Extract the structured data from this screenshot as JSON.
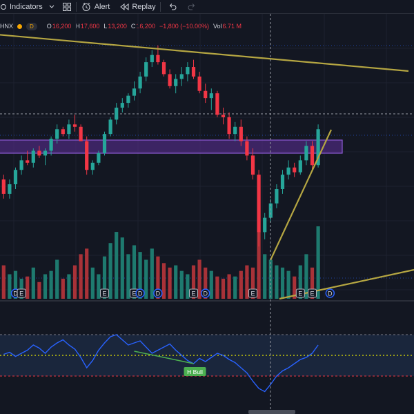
{
  "toolbar": {
    "indicators_label": "Indicators",
    "alert_label": "Alert",
    "replay_label": "Replay"
  },
  "legend": {
    "symbol": "HNX",
    "timeframe": "D",
    "open_key": "O",
    "open": "16,200",
    "high_key": "H",
    "high": "17,600",
    "low_key": "L",
    "low": "13,200",
    "close_key": "C",
    "close": "16,200",
    "change": "−1,800 (−10.00%)",
    "vol_key": "Vol",
    "vol": "6.71 M"
  },
  "rsi_label": "H Bull",
  "event_markers": [
    {
      "type": "D",
      "bar": 2
    },
    {
      "type": "E",
      "bar": 3
    },
    {
      "type": "E",
      "bar": 17
    },
    {
      "type": "E",
      "bar": 22
    },
    {
      "type": "D",
      "bar": 23
    },
    {
      "type": "D",
      "bar": 26
    },
    {
      "type": "E",
      "bar": 32
    },
    {
      "type": "D",
      "bar": 34
    },
    {
      "type": "E",
      "bar": 42
    },
    {
      "type": "E",
      "bar": 50
    },
    {
      "type": "E",
      "bar": 52
    },
    {
      "type": "D",
      "bar": 55
    }
  ],
  "colors": {
    "up": "#26a69a",
    "down": "#f23645",
    "vol_up": "#1e7a6f",
    "vol_down": "#a83238",
    "trendline": "#b5a642",
    "zone_fill": "#4b2a7a",
    "zone_border": "#8e5bd6",
    "rsi": "#2962ff",
    "divergence": "#4caf50",
    "background": "#131722"
  },
  "chart_data": {
    "type": "candlestick",
    "note_units": "price in thousand VND",
    "y_range": [
      12.4,
      22.2
    ],
    "ohlcv": [
      [
        16.0,
        16.2,
        15.2,
        15.4,
        30
      ],
      [
        15.4,
        16.0,
        15.2,
        15.8,
        22
      ],
      [
        15.8,
        16.5,
        15.6,
        16.4,
        25
      ],
      [
        16.4,
        17.0,
        16.2,
        16.8,
        18
      ],
      [
        16.8,
        17.2,
        16.6,
        16.7,
        20
      ],
      [
        16.7,
        17.3,
        16.5,
        17.2,
        28
      ],
      [
        17.2,
        17.4,
        16.9,
        17.0,
        15
      ],
      [
        17.0,
        17.3,
        16.6,
        17.2,
        22
      ],
      [
        17.2,
        17.8,
        17.0,
        17.7,
        25
      ],
      [
        17.7,
        18.3,
        17.5,
        18.1,
        35
      ],
      [
        18.1,
        18.2,
        17.8,
        17.9,
        18
      ],
      [
        17.9,
        18.5,
        17.7,
        18.3,
        22
      ],
      [
        18.3,
        18.7,
        18.0,
        18.2,
        30
      ],
      [
        18.2,
        18.3,
        17.6,
        17.6,
        40
      ],
      [
        17.6,
        17.8,
        16.2,
        16.4,
        45
      ],
      [
        16.4,
        16.8,
        16.2,
        16.7,
        28
      ],
      [
        16.7,
        17.2,
        16.6,
        17.1,
        22
      ],
      [
        17.1,
        18.0,
        17.0,
        17.9,
        38
      ],
      [
        17.9,
        18.6,
        17.8,
        18.5,
        50
      ],
      [
        18.5,
        19.2,
        18.3,
        19.0,
        60
      ],
      [
        19.0,
        19.4,
        18.8,
        19.2,
        55
      ],
      [
        19.2,
        19.6,
        19.0,
        19.5,
        40
      ],
      [
        19.5,
        20.1,
        19.3,
        19.8,
        48
      ],
      [
        19.8,
        20.5,
        19.6,
        20.3,
        42
      ],
      [
        20.3,
        21.1,
        20.1,
        20.9,
        35
      ],
      [
        20.9,
        21.4,
        20.7,
        21.2,
        45
      ],
      [
        21.2,
        21.6,
        20.8,
        20.9,
        38
      ],
      [
        20.9,
        21.0,
        20.3,
        20.4,
        32
      ],
      [
        20.4,
        20.6,
        19.8,
        19.9,
        28
      ],
      [
        19.9,
        20.4,
        19.6,
        20.2,
        30
      ],
      [
        20.2,
        20.7,
        19.9,
        20.4,
        25
      ],
      [
        20.4,
        20.9,
        20.1,
        20.7,
        22
      ],
      [
        20.7,
        21.0,
        20.2,
        20.3,
        30
      ],
      [
        20.3,
        20.5,
        19.6,
        19.7,
        35
      ],
      [
        19.7,
        20.0,
        19.2,
        19.4,
        28
      ],
      [
        19.4,
        19.8,
        18.9,
        19.6,
        25
      ],
      [
        19.6,
        19.7,
        18.6,
        18.7,
        20
      ],
      [
        18.7,
        19.0,
        18.3,
        18.6,
        18
      ],
      [
        18.6,
        18.8,
        17.7,
        17.9,
        22
      ],
      [
        17.9,
        18.4,
        17.6,
        18.2,
        20
      ],
      [
        18.2,
        18.5,
        17.4,
        17.6,
        25
      ],
      [
        17.6,
        17.8,
        16.8,
        17.0,
        30
      ],
      [
        17.0,
        17.3,
        16.0,
        16.2,
        28
      ],
      [
        16.2,
        16.4,
        13.2,
        13.8,
        60
      ],
      [
        13.8,
        14.6,
        13.5,
        14.4,
        40
      ],
      [
        14.4,
        15.2,
        14.2,
        15.0,
        35
      ],
      [
        15.0,
        15.8,
        14.8,
        15.6,
        30
      ],
      [
        15.6,
        16.4,
        15.4,
        16.2,
        28
      ],
      [
        16.2,
        16.8,
        16.0,
        16.5,
        25
      ],
      [
        16.5,
        16.7,
        16.1,
        16.3,
        20
      ],
      [
        16.3,
        17.0,
        16.2,
        16.8,
        30
      ],
      [
        16.8,
        17.6,
        16.6,
        17.4,
        40
      ],
      [
        17.4,
        17.6,
        16.4,
        16.6,
        28
      ],
      [
        16.6,
        18.3,
        16.5,
        18.1,
        65
      ]
    ],
    "rsi": [
      51,
      53,
      49,
      52,
      55,
      60,
      57,
      52,
      58,
      62,
      65,
      60,
      56,
      48,
      38,
      45,
      55,
      62,
      68,
      70,
      65,
      60,
      62,
      64,
      58,
      52,
      55,
      58,
      61,
      55,
      50,
      45,
      42,
      47,
      44,
      48,
      52,
      50,
      46,
      43,
      38,
      33,
      25,
      18,
      15,
      22,
      30,
      35,
      38,
      42,
      46,
      48,
      52,
      60
    ],
    "rsi_range": [
      0,
      100
    ],
    "rsi_levels": [
      70,
      50,
      30
    ]
  }
}
